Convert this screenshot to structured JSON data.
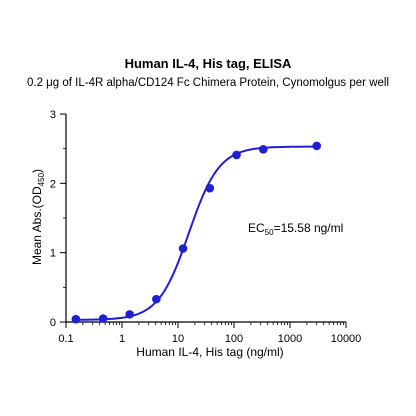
{
  "chart_data": {
    "type": "scatter",
    "title": "Human IL-4, His tag, ELISA",
    "subtitle": "0.2 μg of IL-4R alpha/CD124 Fc Chimera Protein, Cynomolgus per well",
    "xlabel": "Human IL-4, His tag (ng/ml)",
    "ylabel_main": "Mean Abs.(OD",
    "ylabel_sub": "450",
    "ylabel_end": ")",
    "x_scale": "log",
    "xlim": [
      0.1,
      10000
    ],
    "ylim": [
      0,
      3
    ],
    "x_ticks": [
      0.1,
      1,
      10,
      100,
      1000,
      10000
    ],
    "x_tick_labels": [
      "0.1",
      "1",
      "10",
      "100",
      "1000",
      "10000"
    ],
    "y_ticks": [
      0,
      1,
      2,
      3
    ],
    "y_tick_labels": [
      "0",
      "1",
      "2",
      "3"
    ],
    "grid": false,
    "color": "#1f1fd6",
    "points": [
      {
        "x": 0.15,
        "y": 0.04
      },
      {
        "x": 0.46,
        "y": 0.05
      },
      {
        "x": 1.37,
        "y": 0.11
      },
      {
        "x": 4.1,
        "y": 0.33
      },
      {
        "x": 12.3,
        "y": 1.06
      },
      {
        "x": 37,
        "y": 1.93
      },
      {
        "x": 111,
        "y": 2.41
      },
      {
        "x": 333,
        "y": 2.49
      },
      {
        "x": 3000,
        "y": 2.54
      }
    ],
    "fit": {
      "bottom": 0.03,
      "top": 2.53,
      "ec50": 15.58,
      "hill": 1.6
    },
    "annotation": {
      "prefix": "EC",
      "sub": "50",
      "suffix": "=15.58 ng/ml"
    }
  }
}
